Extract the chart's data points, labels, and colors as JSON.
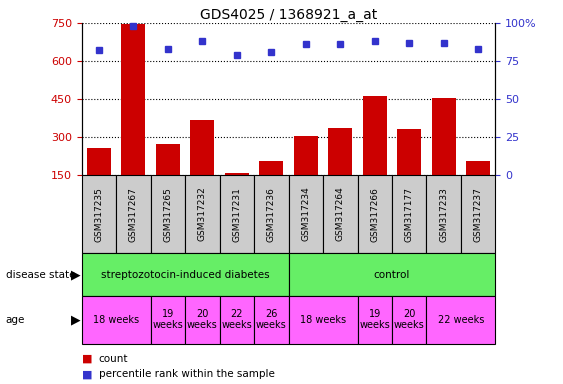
{
  "title": "GDS4025 / 1368921_a_at",
  "samples": [
    "GSM317235",
    "GSM317267",
    "GSM317265",
    "GSM317232",
    "GSM317231",
    "GSM317236",
    "GSM317234",
    "GSM317264",
    "GSM317266",
    "GSM317177",
    "GSM317233",
    "GSM317237"
  ],
  "counts": [
    255,
    745,
    270,
    365,
    155,
    205,
    305,
    335,
    460,
    330,
    455,
    205
  ],
  "percentiles": [
    82,
    98,
    83,
    88,
    79,
    81,
    86,
    86,
    88,
    87,
    87,
    83
  ],
  "ylim_left": [
    150,
    750
  ],
  "ylim_right": [
    0,
    100
  ],
  "yticks_left": [
    150,
    300,
    450,
    600,
    750
  ],
  "yticks_right": [
    0,
    25,
    50,
    75,
    100
  ],
  "bar_color": "#cc0000",
  "marker_color": "#3333cc",
  "gray_box_color": "#cccccc",
  "ds_color": "#66ee66",
  "age_color": "#ff66ff",
  "ds_groups": [
    {
      "label": "streptozotocin-induced diabetes",
      "start": 0,
      "end": 6
    },
    {
      "label": "control",
      "start": 6,
      "end": 12
    }
  ],
  "age_groups": [
    {
      "label": "18 weeks",
      "start": 0,
      "end": 2
    },
    {
      "label": "19\nweeks",
      "start": 2,
      "end": 3
    },
    {
      "label": "20\nweeks",
      "start": 3,
      "end": 4
    },
    {
      "label": "22\nweeks",
      "start": 4,
      "end": 5
    },
    {
      "label": "26\nweeks",
      "start": 5,
      "end": 6
    },
    {
      "label": "18 weeks",
      "start": 6,
      "end": 8
    },
    {
      "label": "19\nweeks",
      "start": 8,
      "end": 9
    },
    {
      "label": "20\nweeks",
      "start": 9,
      "end": 10
    },
    {
      "label": "22 weeks",
      "start": 10,
      "end": 12
    }
  ]
}
